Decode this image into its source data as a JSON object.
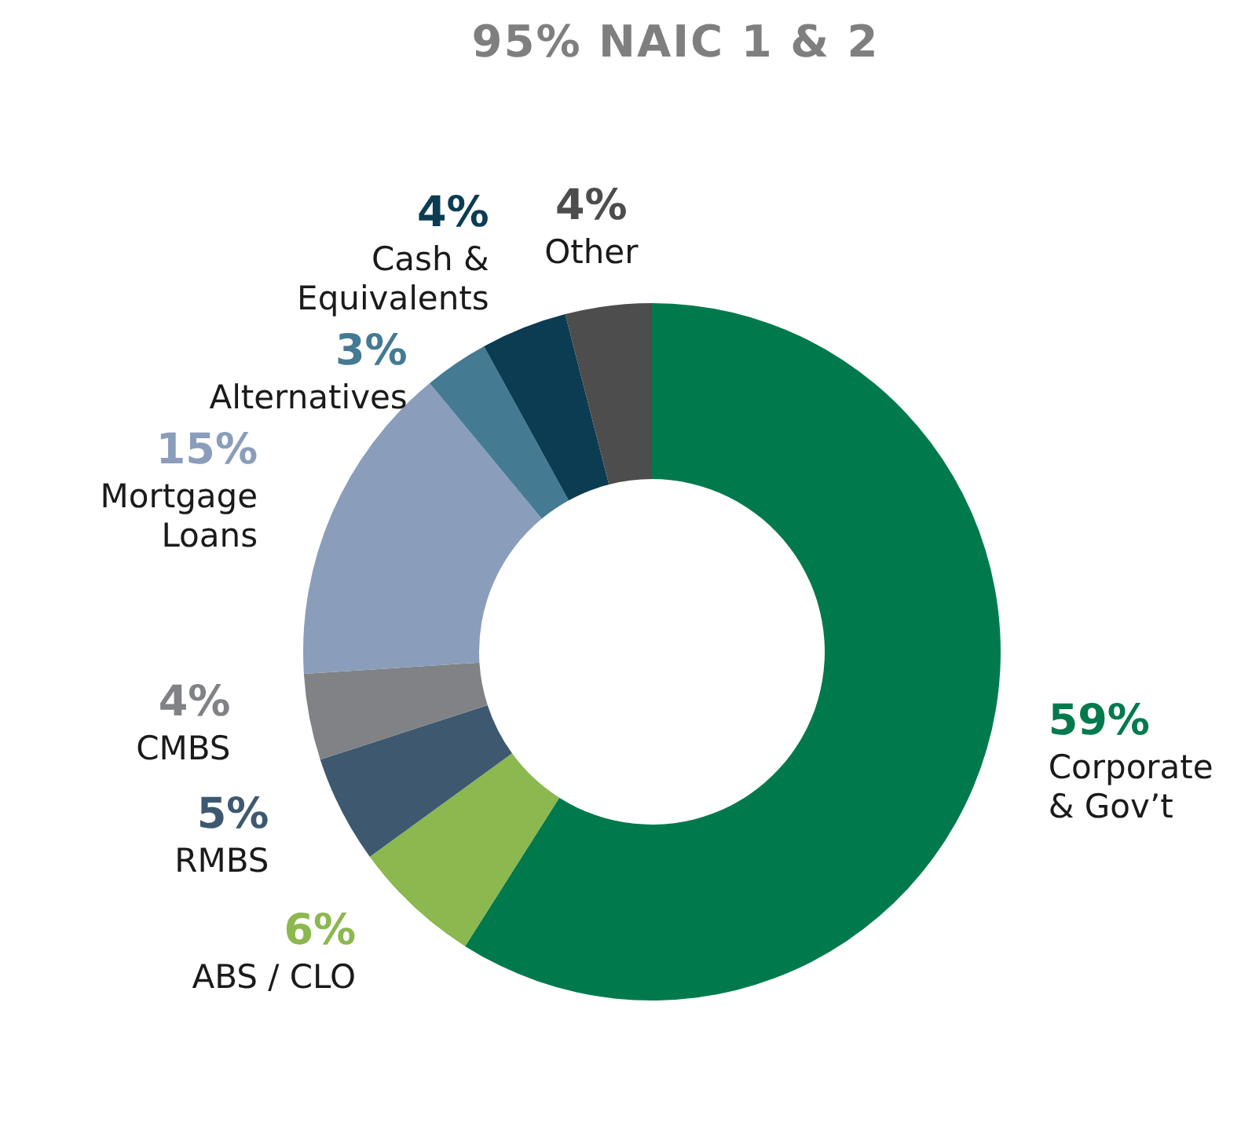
{
  "chart_data": {
    "type": "donut",
    "title": "95% NAIC 1 & 2",
    "categories": [
      "Corporate & Gov’t",
      "ABS / CLO",
      "RMBS",
      "CMBS",
      "Mortgage Loans",
      "Alternatives",
      "Cash & Equivalents",
      "Other"
    ],
    "values": [
      59,
      6,
      5,
      4,
      15,
      3,
      4,
      4
    ],
    "value_labels": [
      "59%",
      "6%",
      "5%",
      "4%",
      "15%",
      "3%",
      "4%",
      "4%"
    ],
    "colors": [
      "#007a4d",
      "#8bb84f",
      "#3e5870",
      "#808285",
      "#8a9dbb",
      "#457a93",
      "#0b3c52",
      "#4d4d4d"
    ]
  }
}
